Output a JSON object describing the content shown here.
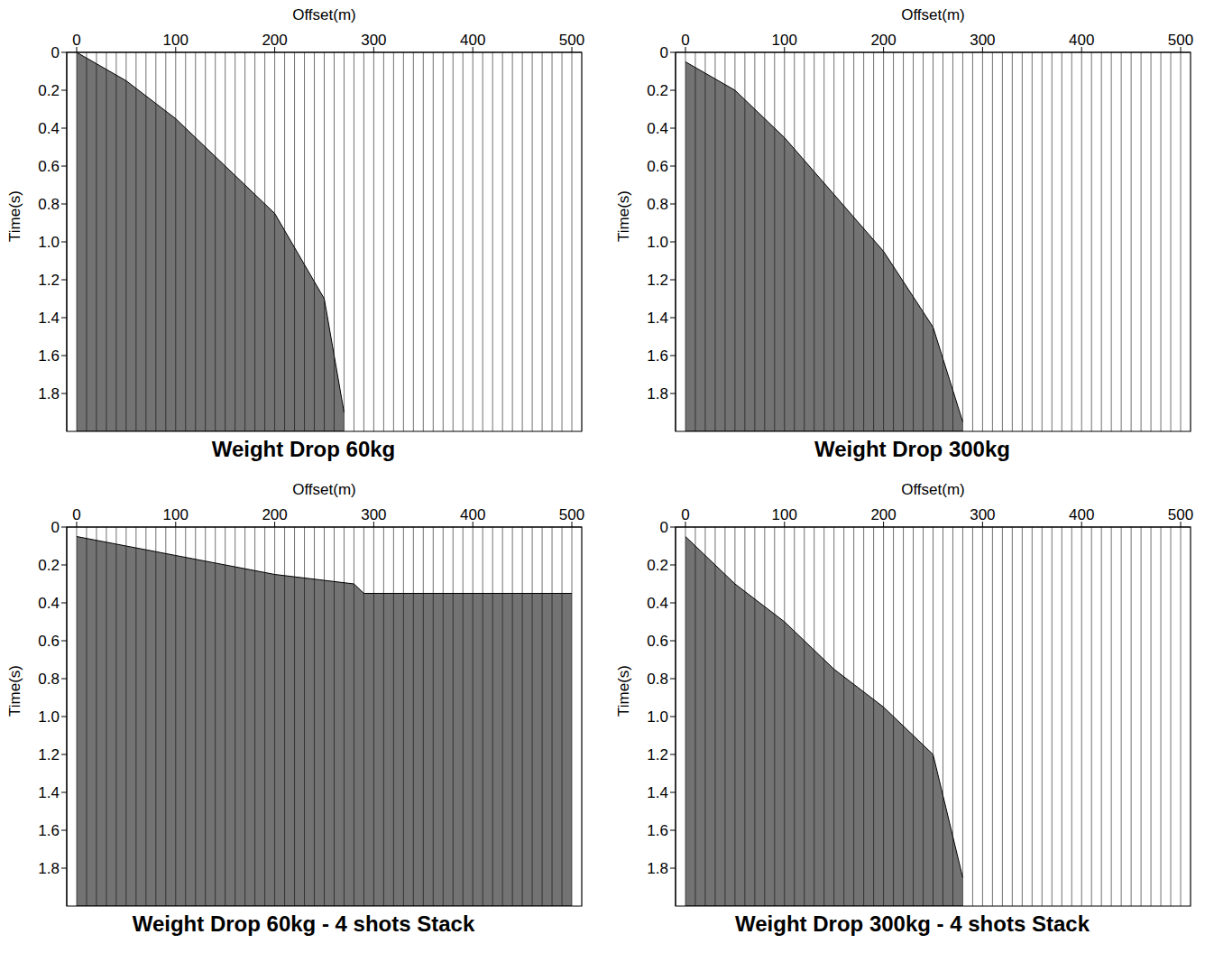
{
  "chart_data": [
    {
      "type": "area",
      "title": "Weight Drop 60kg",
      "x_label": "Offset(m)",
      "y_label": "Time(s)",
      "color": "#000000",
      "xlim": [
        -10,
        510
      ],
      "xticks": [
        0,
        100,
        200,
        300,
        400,
        500
      ],
      "ylim": [
        0,
        2
      ],
      "yticks": [
        0,
        0.2,
        0.4,
        0.6,
        0.8,
        {
          "value": 1,
          "label": "1.0"
        },
        1.2,
        1.4,
        1.6,
        1.8
      ],
      "x": [
        0,
        50,
        100,
        150,
        200,
        250,
        270
      ],
      "values": [
        0,
        0.15,
        0.35,
        0.6,
        0.85,
        1.3,
        1.9
      ],
      "trace_offsets": [
        0,
        10,
        20,
        30,
        40,
        50,
        60,
        70,
        80,
        90,
        100,
        110,
        120,
        130,
        140,
        150,
        160,
        170,
        180,
        190,
        200,
        210,
        220,
        230,
        240,
        250,
        260,
        270,
        280,
        290,
        300,
        310,
        320,
        330,
        340,
        350,
        360,
        370,
        380,
        390,
        400,
        410,
        420,
        430,
        440,
        450,
        460,
        470,
        480,
        490,
        500
      ]
    },
    {
      "type": "area",
      "title": "Weight Drop 300kg",
      "x_label": "Offset(m)",
      "y_label": "Time(s)",
      "color": "#000000",
      "xlim": [
        -10,
        510
      ],
      "xticks": [
        0,
        100,
        200,
        300,
        400,
        500
      ],
      "ylim": [
        0,
        2
      ],
      "yticks": [
        0,
        0.2,
        0.4,
        0.6,
        0.8,
        {
          "value": 1,
          "label": "1.0"
        },
        1.2,
        1.4,
        1.6,
        1.8
      ],
      "x": [
        0,
        50,
        100,
        150,
        200,
        250,
        280
      ],
      "values": [
        0.05,
        0.2,
        0.45,
        0.75,
        1.05,
        1.45,
        1.95
      ],
      "trace_offsets": [
        0,
        10,
        20,
        30,
        40,
        50,
        60,
        70,
        80,
        90,
        100,
        110,
        120,
        130,
        140,
        150,
        160,
        170,
        180,
        190,
        200,
        210,
        220,
        230,
        240,
        250,
        260,
        270,
        280,
        290,
        300,
        310,
        320,
        330,
        340,
        350,
        360,
        370,
        380,
        390,
        400,
        410,
        420,
        430,
        440,
        450,
        460,
        470,
        480,
        490,
        500
      ]
    },
    {
      "type": "area",
      "title": "Weight Drop 60kg - 4 shots Stack",
      "x_label": "Offset(m)",
      "y_label": "Time(s)",
      "color": "#000000",
      "xlim": [
        -10,
        510
      ],
      "xticks": [
        0,
        100,
        200,
        300,
        400,
        500
      ],
      "ylim": [
        0,
        2
      ],
      "yticks": [
        0,
        0.2,
        0.4,
        0.6,
        0.8,
        {
          "value": 1,
          "label": "1.0"
        },
        1.2,
        1.4,
        1.6,
        1.8
      ],
      "x": [
        0,
        100,
        200,
        280,
        290,
        500
      ],
      "values": [
        0.05,
        0.15,
        0.25,
        0.3,
        0.35,
        0.35
      ],
      "trace_offsets": [
        0,
        10,
        20,
        30,
        40,
        50,
        60,
        70,
        80,
        90,
        100,
        110,
        120,
        130,
        140,
        150,
        160,
        170,
        180,
        190,
        200,
        210,
        220,
        230,
        240,
        250,
        260,
        270,
        280,
        290,
        300,
        310,
        320,
        330,
        340,
        350,
        360,
        370,
        380,
        390,
        400,
        410,
        420,
        430,
        440,
        450,
        460,
        470,
        480,
        490,
        500
      ]
    },
    {
      "type": "area",
      "title": "Weight Drop 300kg - 4 shots Stack",
      "x_label": "Offset(m)",
      "y_label": "Time(s)",
      "color": "#000000",
      "xlim": [
        -10,
        510
      ],
      "xticks": [
        0,
        100,
        200,
        300,
        400,
        500
      ],
      "ylim": [
        0,
        2
      ],
      "yticks": [
        0,
        0.2,
        0.4,
        0.6,
        0.8,
        {
          "value": 1,
          "label": "1.0"
        },
        1.2,
        1.4,
        1.6,
        1.8
      ],
      "x": [
        0,
        50,
        100,
        150,
        200,
        250,
        280
      ],
      "values": [
        0.05,
        0.3,
        0.5,
        0.75,
        0.95,
        1.2,
        1.85
      ],
      "trace_offsets": [
        0,
        10,
        20,
        30,
        40,
        50,
        60,
        70,
        80,
        90,
        100,
        110,
        120,
        130,
        140,
        150,
        160,
        170,
        180,
        190,
        200,
        210,
        220,
        230,
        240,
        250,
        260,
        270,
        280,
        290,
        300,
        310,
        320,
        330,
        340,
        350,
        360,
        370,
        380,
        390,
        400,
        410,
        420,
        430,
        440,
        450,
        460,
        470,
        480,
        490,
        500
      ]
    }
  ]
}
